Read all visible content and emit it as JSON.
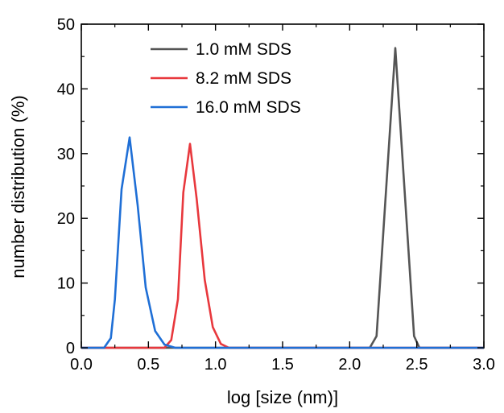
{
  "chart_data": {
    "type": "line",
    "title": "",
    "xlabel": "log [size (nm)]",
    "ylabel": "number distribution (%)",
    "xlim": [
      0.0,
      3.0
    ],
    "ylim": [
      0,
      50
    ],
    "xticks": [
      "0.0",
      "0.5",
      "1.0",
      "1.5",
      "2.0",
      "2.5",
      "3.0"
    ],
    "yticks": [
      "0",
      "10",
      "20",
      "30",
      "40",
      "50"
    ],
    "grid": false,
    "legend_position": "top-center",
    "series": [
      {
        "name": "1.0 mM SDS",
        "color": "#555555",
        "points": [
          [
            0.0,
            0
          ],
          [
            2.15,
            0
          ],
          [
            2.2,
            1.8
          ],
          [
            2.34,
            46.3
          ],
          [
            2.48,
            1.8
          ],
          [
            2.52,
            0
          ],
          [
            3.0,
            0
          ]
        ]
      },
      {
        "name": "8.2 mM SDS",
        "color": "#e8383d",
        "points": [
          [
            0.0,
            0
          ],
          [
            0.62,
            0
          ],
          [
            0.67,
            1.2
          ],
          [
            0.72,
            7.5
          ],
          [
            0.76,
            24.0
          ],
          [
            0.81,
            31.5
          ],
          [
            0.86,
            23.0
          ],
          [
            0.92,
            10.5
          ],
          [
            0.98,
            3.2
          ],
          [
            1.04,
            0.6
          ],
          [
            1.1,
            0
          ],
          [
            3.0,
            0
          ]
        ]
      },
      {
        "name": "16.0 mM SDS",
        "color": "#1f6fd6",
        "points": [
          [
            0.0,
            0
          ],
          [
            0.17,
            0
          ],
          [
            0.22,
            1.5
          ],
          [
            0.25,
            7.5
          ],
          [
            0.3,
            24.5
          ],
          [
            0.36,
            32.5
          ],
          [
            0.42,
            22.0
          ],
          [
            0.48,
            9.3
          ],
          [
            0.55,
            2.6
          ],
          [
            0.62,
            0.5
          ],
          [
            0.7,
            0
          ],
          [
            3.0,
            0
          ]
        ]
      }
    ]
  }
}
